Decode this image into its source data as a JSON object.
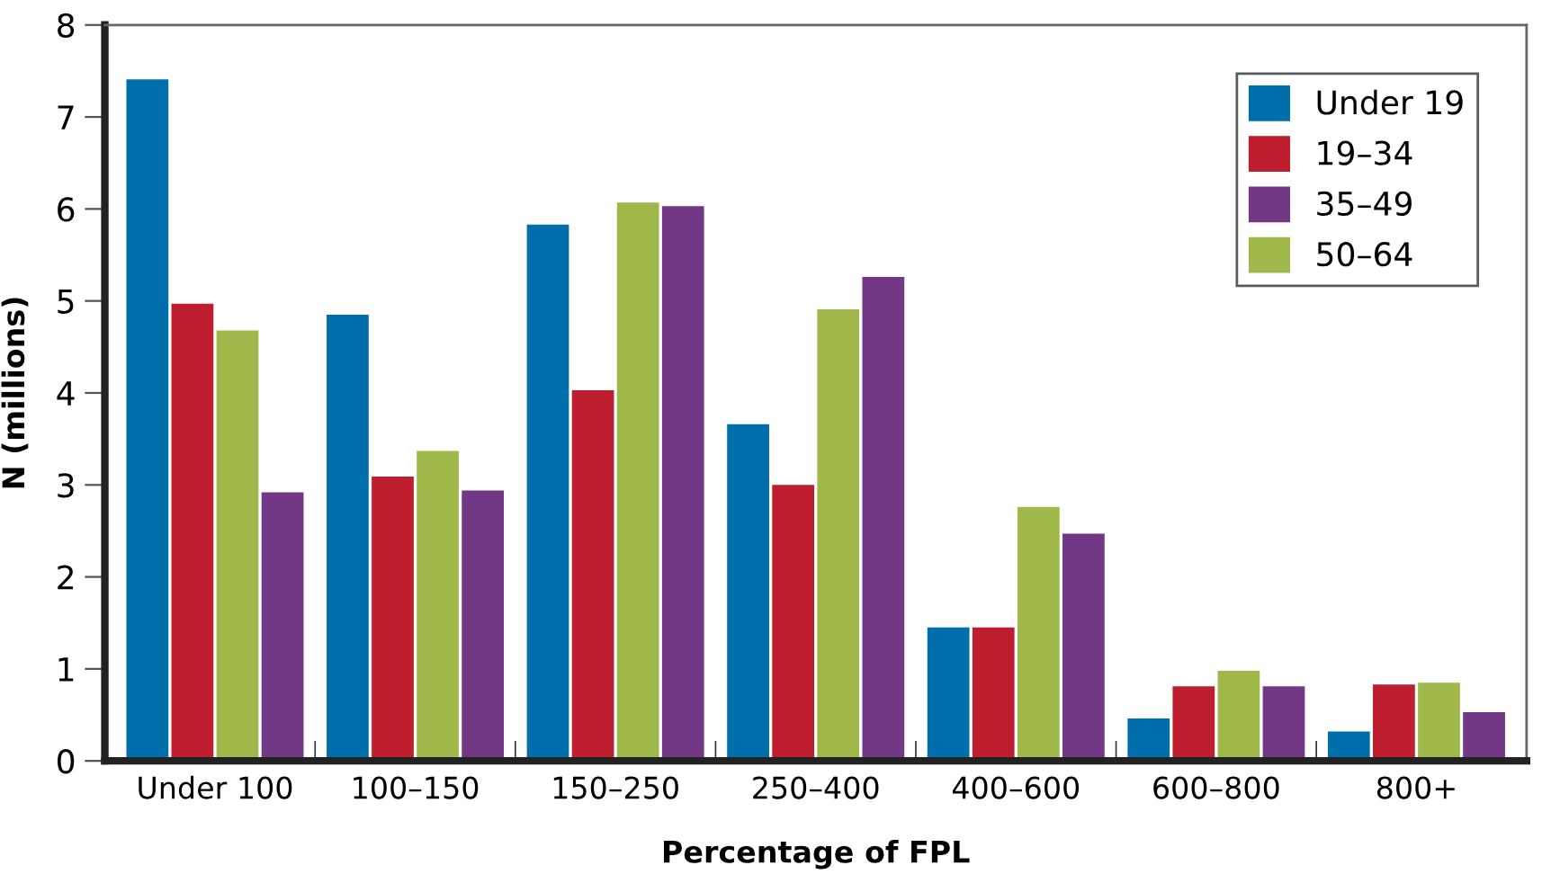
{
  "chart_data": {
    "type": "bar",
    "xlabel": "Percentage of FPL",
    "ylabel": "N (millions)",
    "categories": [
      "Under 100",
      "100–150",
      "150–250",
      "250–400",
      "400–600",
      "600–800",
      "800+"
    ],
    "series": [
      {
        "name": "Under 19",
        "color": "#006eab",
        "values": [
          7.41,
          4.85,
          5.83,
          3.66,
          1.45,
          0.46,
          0.32
        ]
      },
      {
        "name": "19–34",
        "color": "#be1e2d",
        "values": [
          4.97,
          3.09,
          4.03,
          3.0,
          1.45,
          0.81,
          0.83
        ]
      },
      {
        "name": "50–64",
        "color": "#a0b84a",
        "values": [
          4.68,
          3.37,
          6.07,
          4.91,
          2.76,
          0.98,
          0.85
        ]
      },
      {
        "name": "35–49",
        "color": "#723886",
        "values": [
          2.92,
          2.94,
          6.03,
          5.26,
          2.47,
          0.81,
          0.53
        ]
      }
    ],
    "ylim": [
      0,
      8
    ],
    "yticks": [
      0,
      1,
      2,
      3,
      4,
      5,
      6,
      7,
      8
    ],
    "grid": false,
    "legend": "top right"
  }
}
